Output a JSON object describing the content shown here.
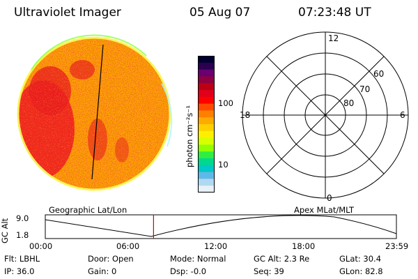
{
  "header": {
    "title": "Ultraviolet Imager",
    "date": "05 Aug 07",
    "time": "07:23:48 UT"
  },
  "colorbar": {
    "unit_label": "photon cm⁻²s⁻¹",
    "tick_labels": [
      "100",
      "10"
    ],
    "colors": [
      "#000030",
      "#2a0050",
      "#6a0070",
      "#8e0040",
      "#bb0016",
      "#e0001a",
      "#ff0000",
      "#ff4a00",
      "#ff8000",
      "#ffaa00",
      "#ffd000",
      "#fff000",
      "#d8ff00",
      "#90ff00",
      "#30ee40",
      "#00d890",
      "#00c8c8",
      "#60b8e8",
      "#b0d8f0",
      "#e8f0f8"
    ]
  },
  "polar": {
    "top_label": "12",
    "left_label": "18",
    "right_label": "6",
    "bottom_label": "0",
    "ring_labels": [
      "60",
      "70",
      "80"
    ]
  },
  "altitude_plot": {
    "left_caption": "Geographic Lat/Lon",
    "right_caption": "Apex MLat/MLT",
    "ylabel": "GC Alt",
    "ymax_label": "9.0",
    "ymin_label": "1.8",
    "x_ticks": [
      "00:00",
      "06:00",
      "12:00",
      "18:00",
      "23:59"
    ],
    "marker_time_hours": 7.4
  },
  "info": {
    "flt": "Flt: LBHL",
    "ip": "IP: 36.0",
    "door": "Door: Open",
    "gain": "Gain:  0",
    "mode": "Mode: Normal",
    "dsp": "Dsp:   -0.0",
    "gcalt": "GC Alt: 2.3 Re",
    "seq": "Seq: 39",
    "glat": "GLat:   30.4",
    "glon": "GLon:   82.8"
  }
}
